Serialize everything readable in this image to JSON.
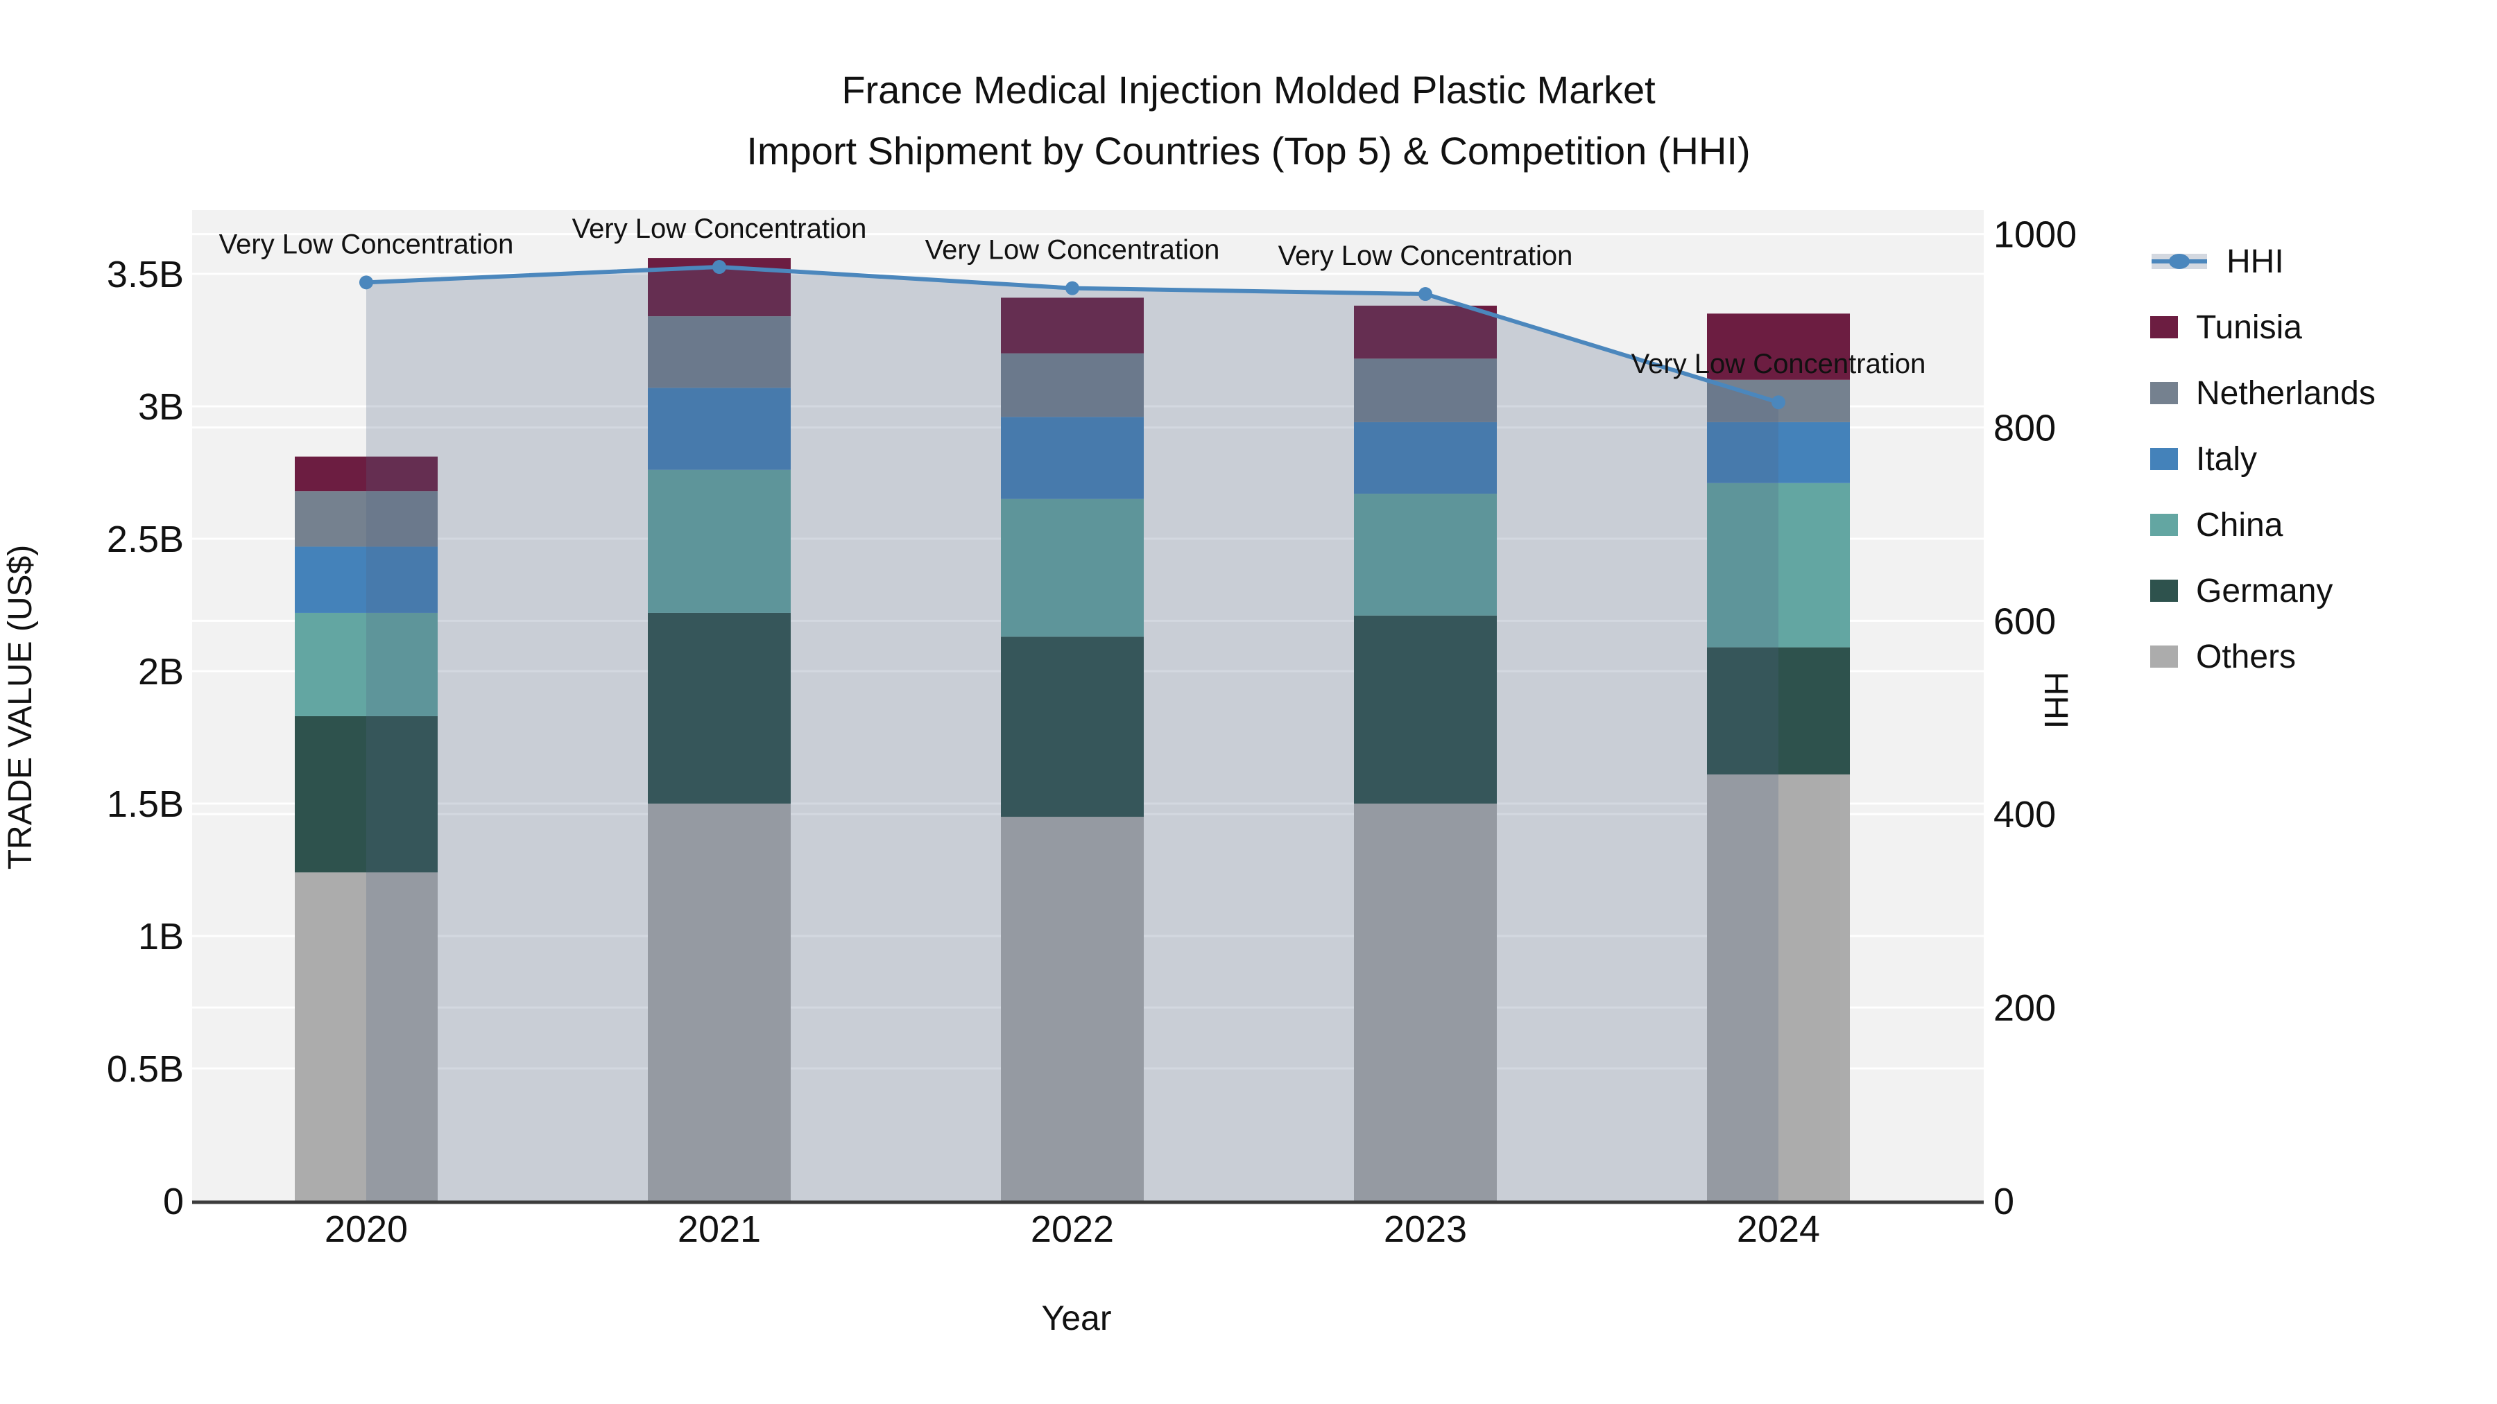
{
  "chart_data": {
    "type": "bar+line",
    "title": "France Medical Injection Molded Plastic Market",
    "subtitle": "Import Shipment by Countries (Top 5) & Competition (HHI)",
    "xlabel": "Year",
    "ylabel_left": "TRADE VALUE (US$)",
    "ylabel_right": "HHI",
    "categories": [
      "2020",
      "2021",
      "2022",
      "2023",
      "2024"
    ],
    "unit": "billion US$",
    "stack_order": [
      "Others",
      "Germany",
      "China",
      "Italy",
      "Netherlands",
      "Tunisia"
    ],
    "series": [
      {
        "name": "Tunisia",
        "color": "#6c1d41",
        "values": [
          0.13,
          0.22,
          0.21,
          0.2,
          0.25
        ]
      },
      {
        "name": "Netherlands",
        "color": "#75818f",
        "values": [
          0.21,
          0.27,
          0.24,
          0.24,
          0.16
        ]
      },
      {
        "name": "Italy",
        "color": "#4482ba",
        "values": [
          0.25,
          0.31,
          0.31,
          0.27,
          0.23
        ]
      },
      {
        "name": "China",
        "color": "#63a6a2",
        "values": [
          0.39,
          0.54,
          0.52,
          0.46,
          0.62
        ]
      },
      {
        "name": "Germany",
        "color": "#2e524d",
        "values": [
          0.59,
          0.72,
          0.68,
          0.71,
          0.48
        ]
      },
      {
        "name": "Others",
        "color": "#acacac",
        "values": [
          1.24,
          1.5,
          1.45,
          1.5,
          1.61
        ]
      }
    ],
    "bar_totals_billions": [
      2.81,
      3.56,
      3.41,
      3.38,
      3.35
    ],
    "line_series": {
      "name": "HHI",
      "color": "#4b87bd",
      "fill_color": "rgba(78,98,130,0.25)",
      "values": [
        950,
        966,
        944,
        938,
        826
      ]
    },
    "annotations": [
      {
        "year": "2020",
        "text": "Very Low Concentration"
      },
      {
        "year": "2021",
        "text": "Very Low Concentration"
      },
      {
        "year": "2022",
        "text": "Very Low Concentration"
      },
      {
        "year": "2023",
        "text": "Very Low Concentration"
      },
      {
        "year": "2024",
        "text": "Very Low Concentration"
      }
    ],
    "y_left_ticks": [
      {
        "value": 0,
        "label": "0"
      },
      {
        "value": 0.5,
        "label": "0.5B"
      },
      {
        "value": 1,
        "label": "1B"
      },
      {
        "value": 1.5,
        "label": "1.5B"
      },
      {
        "value": 2,
        "label": "2B"
      },
      {
        "value": 2.5,
        "label": "2.5B"
      },
      {
        "value": 3,
        "label": "3B"
      },
      {
        "value": 3.5,
        "label": "3.5B"
      }
    ],
    "y_right_ticks": [
      {
        "value": 0,
        "label": "0"
      },
      {
        "value": 200,
        "label": "200"
      },
      {
        "value": 400,
        "label": "400"
      },
      {
        "value": 600,
        "label": "600"
      },
      {
        "value": 800,
        "label": "800"
      },
      {
        "value": 1000,
        "label": "1000"
      }
    ],
    "ylim_left_billions": [
      0,
      3.74
    ],
    "ylim_right": [
      0,
      1025
    ],
    "legend_order": [
      "HHI",
      "Tunisia",
      "Netherlands",
      "Italy",
      "China",
      "Germany",
      "Others"
    ],
    "legend_position": "right",
    "grid": true,
    "colors": {
      "plot_bg": "#f2f2f2",
      "grid": "#ffffff",
      "axis_line": "#3c3c3c",
      "text": "#111111"
    }
  }
}
